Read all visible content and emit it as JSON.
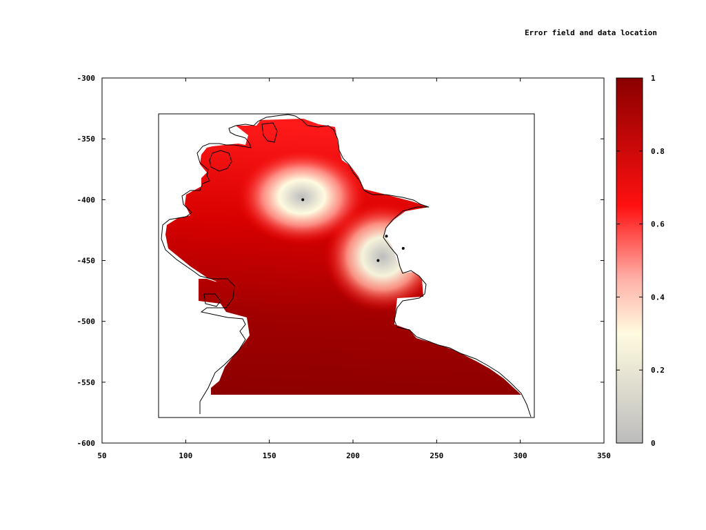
{
  "chart_data": {
    "type": "heatmap",
    "title": "Error field and data location",
    "xlabel": "",
    "ylabel": "",
    "xlim": [
      50,
      350
    ],
    "ylim": [
      -600,
      -300
    ],
    "x_ticks": [
      50,
      100,
      150,
      200,
      250,
      300,
      350
    ],
    "y_ticks": [
      -300,
      -350,
      -400,
      -450,
      -500,
      -550,
      -600
    ],
    "domain_box": {
      "x": [
        83,
        308
      ],
      "y": [
        -580,
        -330
      ]
    },
    "data_points": [
      {
        "x": 170,
        "y": -400
      },
      {
        "x": 220,
        "y": -430
      },
      {
        "x": 230,
        "y": -440
      },
      {
        "x": 215,
        "y": -450
      }
    ],
    "colorbar": {
      "range": [
        0,
        1
      ],
      "ticks": [
        0,
        0.2,
        0.4,
        0.6,
        0.8,
        1
      ],
      "colors": [
        "#bcbcbc",
        "#fffbe0",
        "#ffb0a8",
        "#ff0000",
        "#8b0000"
      ]
    },
    "grid": false,
    "legend": "colorbar-right"
  }
}
